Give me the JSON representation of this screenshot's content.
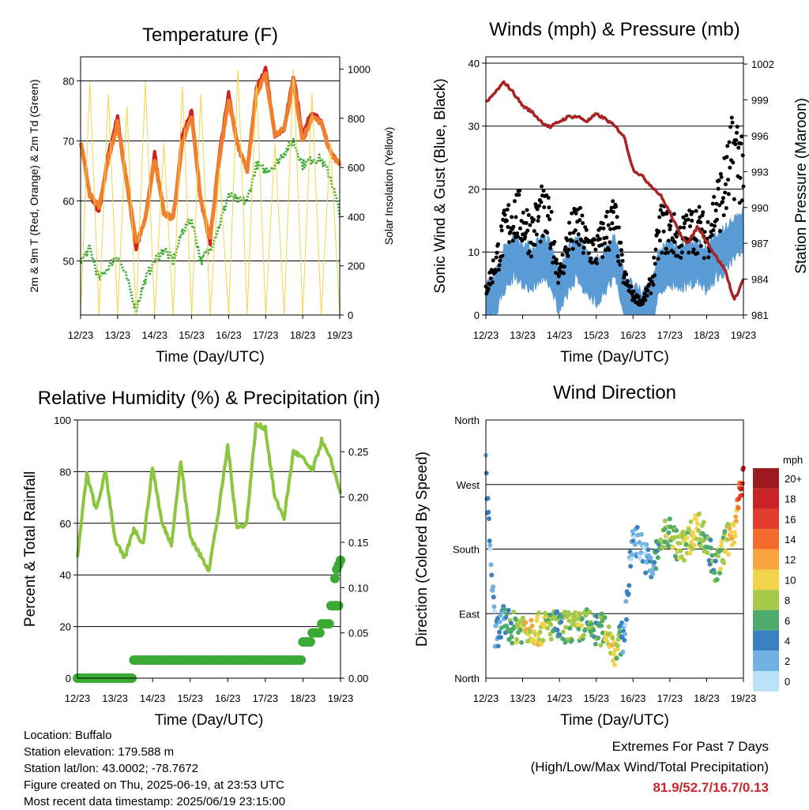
{
  "x_axis": {
    "label": "Time (Day/UTC)",
    "ticks": [
      "12/23",
      "13/23",
      "14/23",
      "15/23",
      "16/23",
      "17/23",
      "18/23",
      "19/23"
    ]
  },
  "chart_data": [
    {
      "id": "temperature",
      "type": "line",
      "title": "Temperature (F)",
      "xlabel": "Time (Day/UTC)",
      "ylabel": "2m & 9m T (Red, Orange) & 2m Td (Green)",
      "ylabel_right": "Solar Insolation (Yellow)",
      "ylim": [
        41,
        84
      ],
      "ylim_right": [
        0,
        1050
      ],
      "yticks": [
        50,
        60,
        70,
        80
      ],
      "yticks_right": [
        0,
        200,
        400,
        600,
        800,
        1000
      ],
      "grid": "horizontal",
      "x": [
        0,
        0.25,
        0.5,
        0.75,
        1,
        1.25,
        1.5,
        1.75,
        2,
        2.25,
        2.5,
        2.75,
        3,
        3.25,
        3.5,
        3.75,
        4,
        4.25,
        4.5,
        4.75,
        5,
        5.25,
        5.5,
        5.75,
        6,
        6.25,
        6.5,
        6.75,
        7
      ],
      "series": [
        {
          "key": "t2m",
          "color": "#d02020",
          "values": [
            70,
            61,
            58,
            68,
            74,
            63,
            52,
            57,
            68,
            58,
            57,
            71,
            75,
            60,
            53,
            68,
            78,
            69,
            65,
            79,
            82,
            71,
            72,
            81,
            71,
            75,
            73,
            68,
            66
          ]
        },
        {
          "key": "t9m",
          "color": "#f08030",
          "values": [
            70,
            61,
            59,
            67,
            73,
            63,
            53,
            57,
            67,
            58,
            57,
            70,
            74,
            60,
            54,
            67,
            77,
            69,
            65,
            78,
            81,
            71,
            72,
            80,
            70,
            74,
            73,
            68,
            66
          ]
        },
        {
          "key": "td2m",
          "color": "#3aaa35",
          "values": [
            50,
            52,
            47,
            49,
            51,
            47,
            42,
            47,
            50,
            52,
            50,
            55,
            57,
            50,
            52,
            56,
            61,
            60,
            60,
            66,
            65,
            66,
            68,
            70,
            66,
            67,
            67,
            64,
            58
          ]
        },
        {
          "key": "solar",
          "color": "#f5d44a",
          "values": [
            0,
            950,
            0,
            900,
            0,
            850,
            0,
            950,
            0,
            700,
            0,
            930,
            0,
            900,
            0,
            600,
            0,
            1000,
            0,
            950,
            0,
            700,
            0,
            1000,
            0,
            900,
            0,
            700,
            0
          ]
        }
      ]
    },
    {
      "id": "winds",
      "type": "scatter",
      "title": "Winds (mph) & Pressure (mb)",
      "xlabel": "Time (Day/UTC)",
      "ylabel": "Sonic Wind & Gust (Blue, Black)",
      "ylabel_right": "Station Pressure (Maroon)",
      "ylim": [
        0,
        41
      ],
      "ylim_right": [
        981,
        1002.6
      ],
      "yticks": [
        0,
        10,
        20,
        30,
        40
      ],
      "yticks_right": [
        981,
        984,
        987,
        990,
        993,
        996,
        999,
        1002
      ],
      "grid": "horizontal",
      "x": [
        0,
        0.25,
        0.5,
        0.75,
        1,
        1.25,
        1.5,
        1.75,
        2,
        2.25,
        2.5,
        2.75,
        3,
        3.25,
        3.5,
        3.75,
        4,
        4.25,
        4.5,
        4.75,
        5,
        5.25,
        5.5,
        5.75,
        6,
        6.25,
        6.5,
        6.75,
        7
      ],
      "series": [
        {
          "key": "wind",
          "color": "#5b9bd5",
          "values": [
            2,
            4,
            8,
            10,
            9,
            8,
            10,
            9,
            4,
            8,
            10,
            7,
            6,
            8,
            10,
            4,
            2,
            1,
            3,
            8,
            9,
            8,
            9,
            9,
            8,
            10,
            11,
            13,
            14
          ]
        },
        {
          "key": "gust",
          "color": "#000000",
          "values": [
            4,
            8,
            13,
            16,
            15,
            13,
            16,
            14,
            6,
            12,
            14,
            11,
            10,
            13,
            15,
            6,
            3,
            2,
            5,
            14,
            13,
            12,
            13,
            14,
            12,
            17,
            20,
            26,
            24
          ]
        },
        {
          "key": "pressure",
          "color": "#a82424",
          "values": [
            998.7,
            999.6,
            1000.5,
            999.6,
            998.5,
            998,
            997.2,
            996.7,
            997.2,
            997.6,
            997.6,
            997.2,
            997.8,
            997.4,
            996.8,
            996,
            993.2,
            992.6,
            991.8,
            991,
            989.6,
            987.9,
            987,
            988.4,
            987.2,
            985.9,
            984.8,
            982.2,
            984
          ]
        }
      ]
    },
    {
      "id": "humidity",
      "type": "line",
      "title": "Relative Humidity (%) & Precipitation (in)",
      "xlabel": "Time (Day/UTC)",
      "ylabel": "Percent & Total Rainfall",
      "ylim": [
        0,
        100
      ],
      "ylim_right": [
        0,
        0.285
      ],
      "yticks": [
        0,
        20,
        40,
        60,
        80,
        100
      ],
      "yticks_right": [
        0.0,
        0.05,
        0.1,
        0.15,
        0.2,
        0.25
      ],
      "grid": "horizontal",
      "x": [
        0,
        0.25,
        0.5,
        0.75,
        1,
        1.25,
        1.5,
        1.75,
        2,
        2.25,
        2.5,
        2.75,
        3,
        3.25,
        3.5,
        3.75,
        4,
        4.25,
        4.5,
        4.75,
        5,
        5.25,
        5.5,
        5.75,
        6,
        6.25,
        6.5,
        6.75,
        7
      ],
      "series": [
        {
          "key": "rh",
          "color": "#8cc63f",
          "values": [
            47,
            79,
            65,
            80,
            54,
            46,
            58,
            52,
            82,
            60,
            52,
            84,
            55,
            48,
            42,
            64,
            90,
            58,
            60,
            98,
            97,
            70,
            62,
            88,
            85,
            80,
            92,
            84,
            72
          ]
        },
        {
          "key": "precip",
          "color": "#3aaa35",
          "values": [
            0,
            0,
            0,
            0,
            0,
            0,
            0.02,
            0.02,
            0.02,
            0.02,
            0.02,
            0.02,
            0.02,
            0.02,
            0.02,
            0.02,
            0.02,
            0.02,
            0.02,
            0.02,
            0.02,
            0.02,
            0.02,
            0.02,
            0.04,
            0.05,
            0.06,
            0.08,
            0.13
          ]
        }
      ]
    },
    {
      "id": "direction",
      "type": "scatter",
      "title": "Wind Direction",
      "xlabel": "Time (Day/UTC)",
      "ylabel": "Direction (Colored By Speed)",
      "ylim": [
        0,
        360
      ],
      "yticks": [
        "North",
        "East",
        "South",
        "West",
        "North"
      ],
      "grid": "horizontal",
      "x": [
        0,
        0.25,
        0.5,
        0.75,
        1,
        1.25,
        1.5,
        1.75,
        2,
        2.25,
        2.5,
        2.75,
        3,
        3.25,
        3.5,
        3.75,
        4,
        4.25,
        4.5,
        4.75,
        5,
        5.25,
        5.5,
        5.75,
        6,
        6.25,
        6.5,
        6.75,
        7
      ],
      "series": [
        {
          "key": "dir",
          "values": [
            290,
            60,
            80,
            70,
            72,
            70,
            68,
            75,
            70,
            72,
            70,
            75,
            65,
            70,
            40,
            60,
            200,
            180,
            150,
            190,
            205,
            180,
            190,
            215,
            190,
            150,
            185,
            210,
            280
          ],
          "speed": [
            3,
            2,
            4,
            7,
            9,
            10,
            9,
            8,
            5,
            8,
            9,
            7,
            6,
            8,
            10,
            3,
            2,
            2,
            3,
            7,
            8,
            8,
            9,
            9,
            6,
            7,
            8,
            11,
            18
          ]
        }
      ],
      "legend": {
        "title": "mph",
        "labels": [
          "20+",
          "18",
          "16",
          "14",
          "12",
          "10",
          "8",
          "6",
          "4",
          "2",
          "0"
        ],
        "colors": [
          "#9a1a1e",
          "#c72226",
          "#e23c2c",
          "#f26a2c",
          "#f8a440",
          "#f2d44c",
          "#a5c94a",
          "#4caa6a",
          "#3a80c0",
          "#72b2e2",
          "#b9e1f7"
        ]
      }
    }
  ],
  "info": {
    "location": "Location: Buffalo",
    "elevation": "Station elevation: 179.588 m",
    "latlon": "Station lat/lon: 43.0002; -78.7672",
    "created": "Figure created on Thu, 2025-06-19, at 23:53 UTC",
    "recent": "Most recent data timestamp: 2025/06/19 23:15:00"
  },
  "extremes": {
    "title": "Extremes For Past 7 Days",
    "subtitle": "(High/Low/Max Wind/Total Precipitation)",
    "values": "81.9/52.7/16.7/0.13"
  }
}
